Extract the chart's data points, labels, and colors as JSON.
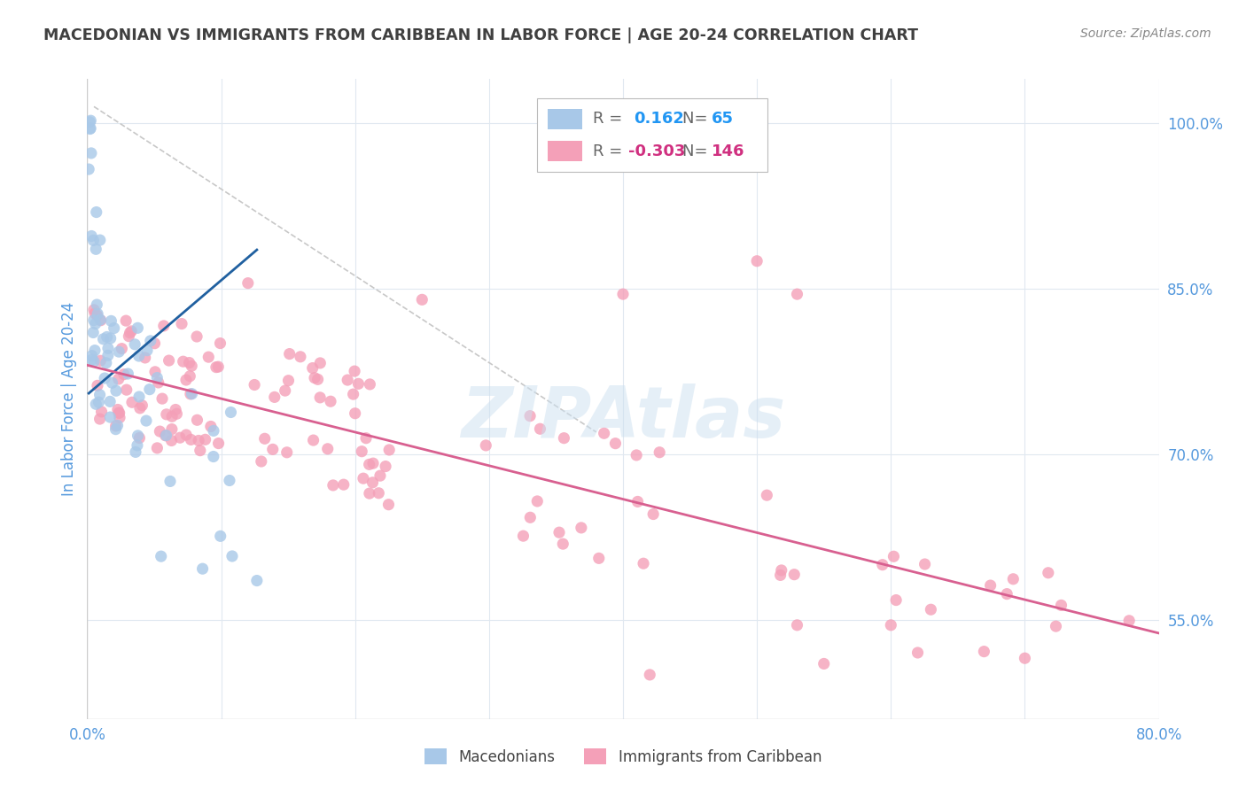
{
  "title": "MACEDONIAN VS IMMIGRANTS FROM CARIBBEAN IN LABOR FORCE | AGE 20-24 CORRELATION CHART",
  "source": "Source: ZipAtlas.com",
  "ylabel": "In Labor Force | Age 20-24",
  "watermark": "ZIPAtlas",
  "xlim": [
    0.0,
    0.8
  ],
  "ylim": [
    0.46,
    1.04
  ],
  "xticks": [
    0.0,
    0.1,
    0.2,
    0.3,
    0.4,
    0.5,
    0.6,
    0.7,
    0.8
  ],
  "xtick_labels": [
    "0.0%",
    "",
    "",
    "",
    "",
    "",
    "",
    "",
    "80.0%"
  ],
  "yticks_right": [
    0.55,
    0.7,
    0.85,
    1.0
  ],
  "ytick_labels_right": [
    "55.0%",
    "70.0%",
    "85.0%",
    "100.0%"
  ],
  "blue_R": 0.162,
  "blue_N": 65,
  "pink_R": -0.303,
  "pink_N": 146,
  "blue_color": "#a8c8e8",
  "pink_color": "#f4a0b8",
  "blue_line_color": "#2060a0",
  "pink_line_color": "#d86090",
  "ref_line_color": "#c8c8c8",
  "legend_blue_label": "Macedonians",
  "legend_pink_label": "Immigrants from Caribbean",
  "background_color": "#ffffff",
  "grid_color": "#e0e8f0",
  "title_color": "#404040",
  "axis_label_color": "#5599dd",
  "tick_label_color": "#5599dd",
  "source_color": "#888888",
  "watermark_color": "#cce0f0"
}
